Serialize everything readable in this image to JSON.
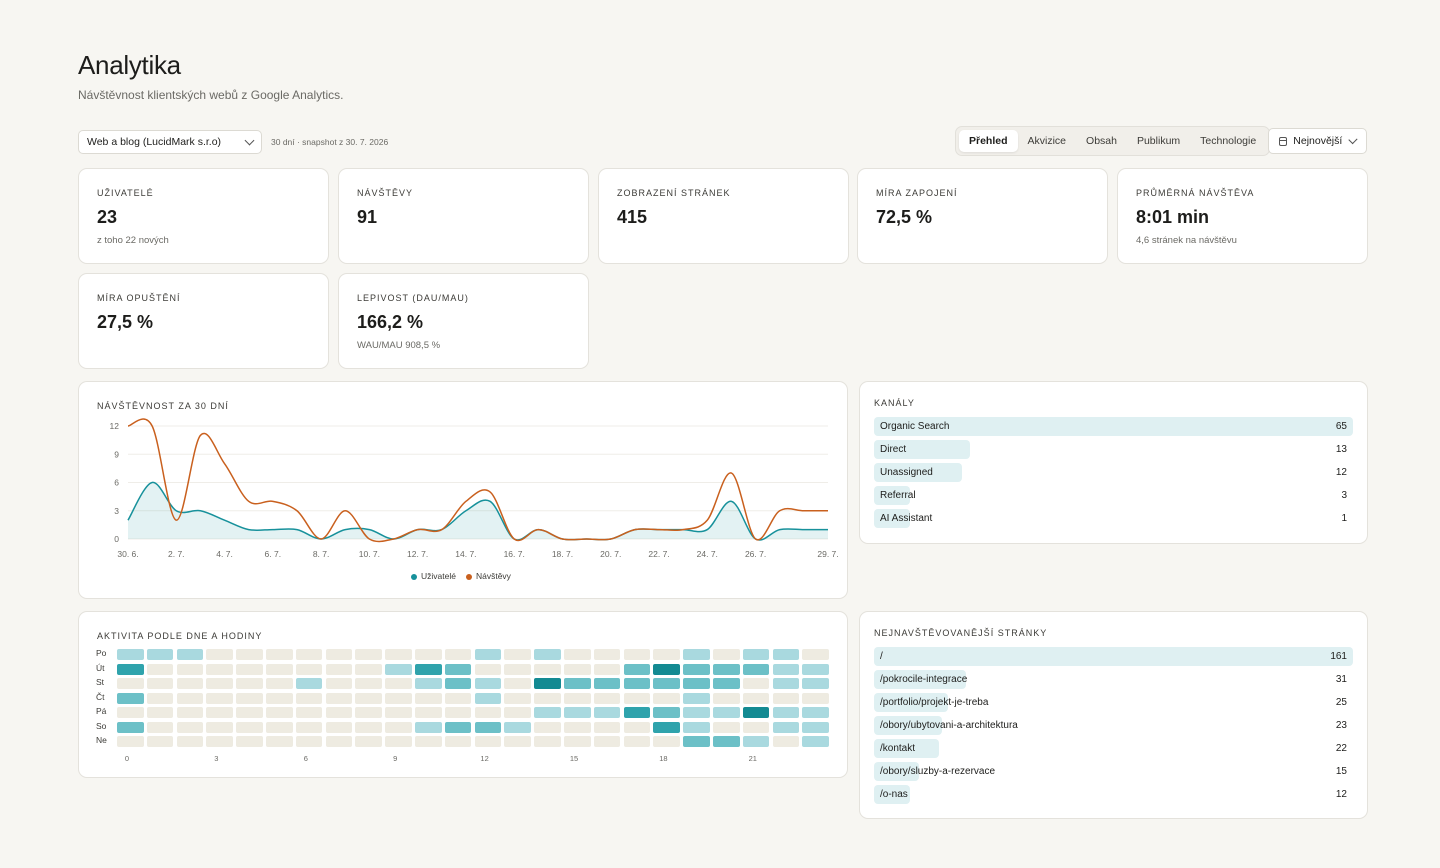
{
  "header": {
    "title": "Analytika",
    "subtitle": "Návštěvnost klientských webů z Google Analytics."
  },
  "toolbar": {
    "site_select": "Web a blog (LucidMark s.r.o)",
    "snapshot": "30 dní · snapshot z 30. 7. 2026",
    "tabs": [
      "Přehled",
      "Akvizice",
      "Obsah",
      "Publikum",
      "Technologie"
    ],
    "active_tab": "Přehled",
    "sort_label": "Nejnovější"
  },
  "kpis": [
    {
      "label": "UŽIVATELÉ",
      "value": "23",
      "sub": "z toho 22 nových"
    },
    {
      "label": "NÁVŠTĚVY",
      "value": "91",
      "sub": ""
    },
    {
      "label": "ZOBRAZENÍ STRÁNEK",
      "value": "415",
      "sub": ""
    },
    {
      "label": "MÍRA ZAPOJENÍ",
      "value": "72,5 %",
      "sub": ""
    },
    {
      "label": "PRŮMĚRNÁ NÁVŠTĚVA",
      "value": "8:01 min",
      "sub": "4,6 stránek na návštěvu"
    },
    {
      "label": "MÍRA OPUŠTĚNÍ",
      "value": "27,5 %",
      "sub": ""
    },
    {
      "label": "LEPIVOST (DAU/MAU)",
      "value": "166,2 %",
      "sub": "WAU/MAU 908,5 %"
    }
  ],
  "traffic": {
    "title": "NÁVŠTĚVNOST ZA 30 DNÍ",
    "colors": {
      "users": "#17919b",
      "visits": "#c9601e"
    }
  },
  "chart_data": [
    {
      "type": "line",
      "title": "NÁVŠTĚVNOST ZA 30 DNÍ",
      "x": [
        "30. 6.",
        "1. 7.",
        "2. 7.",
        "3. 7.",
        "4. 7.",
        "5. 7.",
        "6. 7.",
        "7. 7.",
        "8. 7.",
        "9. 7.",
        "10. 7.",
        "11. 7.",
        "12. 7.",
        "13. 7.",
        "14. 7.",
        "15. 7.",
        "16. 7.",
        "17. 7.",
        "18. 7.",
        "19. 7.",
        "20. 7.",
        "21. 7.",
        "22. 7.",
        "23. 7.",
        "24. 7.",
        "25. 7.",
        "26. 7.",
        "27. 7.",
        "28. 7.",
        "29. 7."
      ],
      "x_tick_labels": [
        "30. 6.",
        "2. 7.",
        "4. 7.",
        "6. 7.",
        "8. 7.",
        "10. 7.",
        "12. 7.",
        "14. 7.",
        "16. 7.",
        "18. 7.",
        "20. 7.",
        "22. 7.",
        "24. 7.",
        "26. 7.",
        "29. 7."
      ],
      "y_ticks": [
        0,
        3,
        6,
        9,
        12
      ],
      "ylim": [
        0,
        12
      ],
      "legend_position": "bottom",
      "series": [
        {
          "name": "Uživatelé",
          "values": [
            2,
            6,
            3,
            3,
            2,
            1,
            1,
            1,
            0,
            1,
            1,
            0,
            1,
            1,
            3,
            4,
            0,
            1,
            0,
            0,
            0,
            1,
            1,
            1,
            1,
            4,
            0,
            1,
            1,
            1
          ]
        },
        {
          "name": "Návštěvy",
          "values": [
            12,
            12,
            2,
            11,
            8,
            4,
            4,
            3,
            0,
            3,
            0,
            0,
            1,
            1,
            4,
            5,
            0,
            1,
            0,
            0,
            0,
            1,
            1,
            1,
            2,
            7,
            0,
            3,
            3,
            3
          ]
        }
      ]
    },
    {
      "type": "heatmap",
      "title": "AKTIVITA PODLE DNE A HODINY",
      "rows": [
        "Po",
        "Út",
        "St",
        "Čt",
        "Pá",
        "So",
        "Ne"
      ],
      "x_tick_labels": [
        "0",
        "3",
        "6",
        "9",
        "12",
        "15",
        "18",
        "21"
      ],
      "values": [
        [
          1,
          1,
          1,
          0,
          0,
          0,
          0,
          0,
          0,
          0,
          0,
          0,
          1,
          0,
          1,
          0,
          0,
          0,
          0,
          1,
          0,
          1,
          1,
          0
        ],
        [
          3,
          0,
          0,
          0,
          0,
          0,
          0,
          0,
          0,
          1,
          3,
          2,
          0,
          0,
          0,
          0,
          0,
          2,
          4,
          2,
          2,
          2,
          1,
          1
        ],
        [
          0,
          0,
          0,
          0,
          0,
          0,
          1,
          0,
          0,
          0,
          1,
          2,
          1,
          0,
          4,
          2,
          2,
          2,
          2,
          2,
          2,
          0,
          1,
          1
        ],
        [
          2,
          0,
          0,
          0,
          0,
          0,
          0,
          0,
          0,
          0,
          0,
          0,
          1,
          0,
          0,
          0,
          0,
          0,
          0,
          1,
          0,
          0,
          0,
          0
        ],
        [
          0,
          0,
          0,
          0,
          0,
          0,
          0,
          0,
          0,
          0,
          0,
          0,
          0,
          0,
          1,
          1,
          1,
          3,
          2,
          1,
          1,
          4,
          1,
          1
        ],
        [
          2,
          0,
          0,
          0,
          0,
          0,
          0,
          0,
          0,
          0,
          1,
          2,
          2,
          1,
          0,
          0,
          0,
          0,
          3,
          1,
          0,
          0,
          1,
          1
        ],
        [
          0,
          0,
          0,
          0,
          0,
          0,
          0,
          0,
          0,
          0,
          0,
          0,
          0,
          0,
          0,
          0,
          0,
          0,
          0,
          2,
          2,
          1,
          0,
          1
        ]
      ]
    }
  ],
  "channels": {
    "title": "KANÁLY",
    "max": 65,
    "items": [
      {
        "name": "Organic Search",
        "value": 65
      },
      {
        "name": "Direct",
        "value": 13
      },
      {
        "name": "Unassigned",
        "value": 12
      },
      {
        "name": "Referral",
        "value": 3
      },
      {
        "name": "AI Assistant",
        "value": 1
      }
    ]
  },
  "top_pages": {
    "title": "NEJNAVŠTĚVOVANĚJŠÍ STRÁNKY",
    "max": 161,
    "items": [
      {
        "name": "/",
        "value": 161
      },
      {
        "name": "/pokrocile-integrace",
        "value": 31
      },
      {
        "name": "/portfolio/projekt-je-treba",
        "value": 25
      },
      {
        "name": "/obory/ubytovani-a-architektura",
        "value": 23
      },
      {
        "name": "/kontakt",
        "value": 22
      },
      {
        "name": "/obory/sluzby-a-rezervace",
        "value": 15
      },
      {
        "name": "/o-nas",
        "value": 12
      }
    ]
  },
  "heatmap": {
    "title": "AKTIVITA PODLE DNE A HODINY",
    "palette": [
      "#eeebe1",
      "#a9d9df",
      "#6cc0c7",
      "#2fa3ac",
      "#138a92"
    ]
  }
}
